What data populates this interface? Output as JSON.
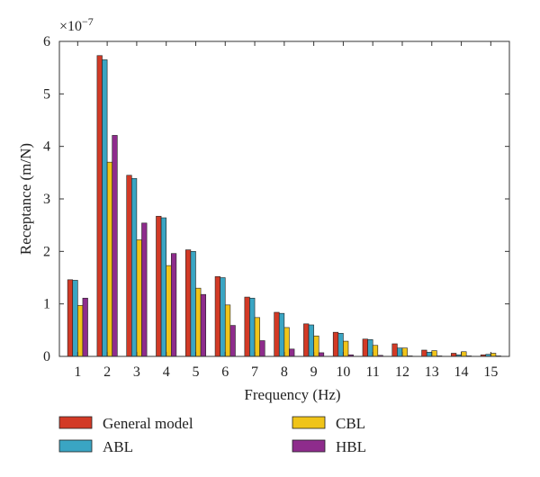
{
  "chart_data": {
    "type": "bar",
    "title": "",
    "xlabel": "Frequency (Hz)",
    "ylabel": "Receptance (m/N)",
    "y_multiplier_label": "×10",
    "y_multiplier_exponent": "−7",
    "ylim": [
      0,
      6
    ],
    "yticks": [
      "0",
      "1",
      "2",
      "3",
      "4",
      "5",
      "6"
    ],
    "categories": [
      "1",
      "2",
      "3",
      "4",
      "5",
      "6",
      "7",
      "8",
      "9",
      "10",
      "11",
      "12",
      "13",
      "14",
      "15"
    ],
    "series": [
      {
        "name": "General model",
        "color": "#d23a26",
        "values": [
          1.46,
          5.73,
          3.45,
          2.67,
          2.03,
          1.52,
          1.13,
          0.84,
          0.62,
          0.46,
          0.33,
          0.24,
          0.12,
          0.06,
          0.03
        ]
      },
      {
        "name": "ABL",
        "color": "#3aa5c3",
        "values": [
          1.45,
          5.65,
          3.39,
          2.64,
          2.0,
          1.5,
          1.11,
          0.82,
          0.6,
          0.44,
          0.32,
          0.16,
          0.08,
          0.03,
          0.04
        ]
      },
      {
        "name": "CBL",
        "color": "#f0c419",
        "values": [
          0.97,
          3.7,
          2.22,
          1.73,
          1.3,
          0.98,
          0.74,
          0.55,
          0.39,
          0.29,
          0.21,
          0.16,
          0.11,
          0.09,
          0.06
        ]
      },
      {
        "name": "HBL",
        "color": "#8e2c8c",
        "values": [
          1.11,
          4.21,
          2.54,
          1.96,
          1.18,
          0.59,
          0.3,
          0.14,
          0.07,
          0.03,
          0.02,
          0.01,
          0.01,
          0.01,
          0.01
        ]
      }
    ],
    "grid": false,
    "legend_position": "bottom"
  }
}
